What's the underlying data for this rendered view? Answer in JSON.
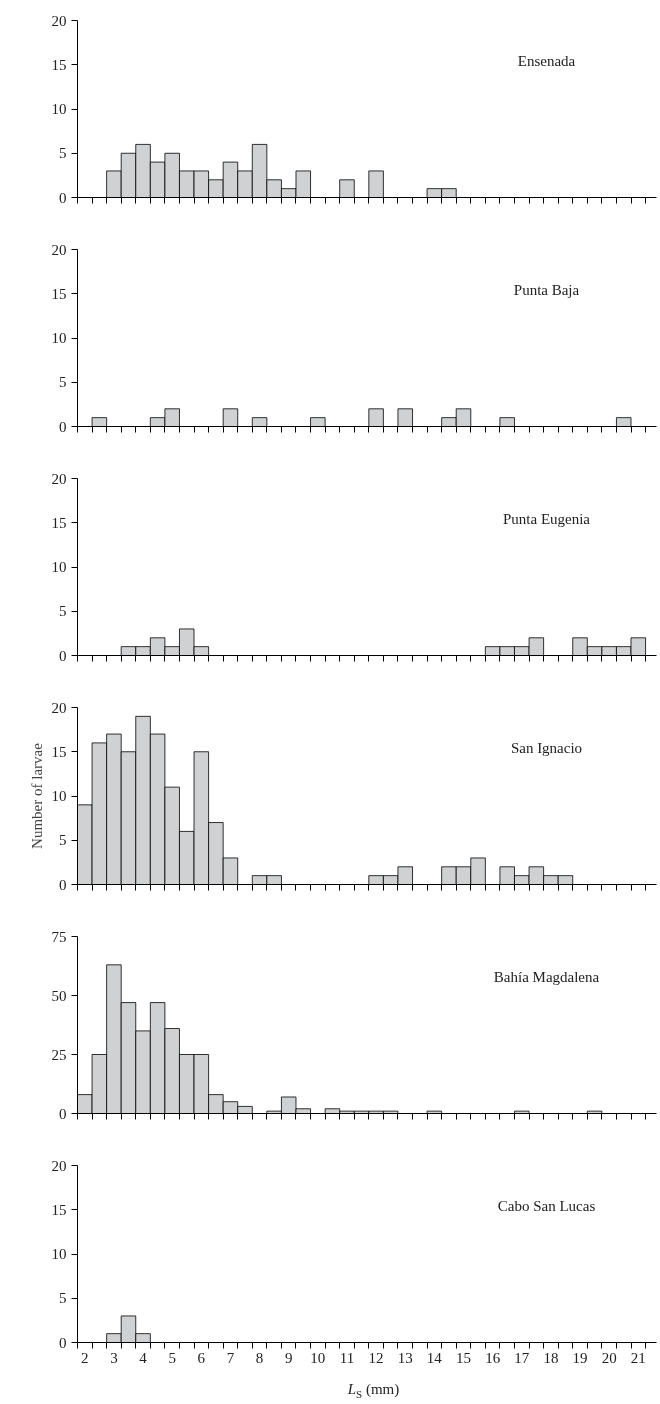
{
  "chart_data": [
    {
      "type": "bar",
      "title": "Ensenada",
      "color": "#d0d1d3",
      "tick_labels": "y",
      "ylim": [
        0,
        20
      ],
      "yticks": [
        0,
        5,
        10,
        15,
        20
      ],
      "categories": [
        "2",
        null,
        "3",
        null,
        "4",
        null,
        "5",
        null,
        "6",
        null,
        "7",
        null,
        "8",
        null,
        "9",
        null,
        "10",
        null,
        "11",
        null,
        "12",
        null,
        "13",
        null,
        "14",
        null,
        "15",
        null,
        "16",
        null,
        "17",
        null,
        "18",
        null,
        "19",
        null,
        "20",
        null,
        "21"
      ],
      "values": [
        0,
        0,
        3,
        5,
        6,
        4,
        5,
        3,
        3,
        2,
        4,
        3,
        6,
        2,
        1,
        3,
        0,
        0,
        2,
        0,
        3,
        0,
        0,
        0,
        1,
        1,
        0,
        0,
        0,
        0,
        0,
        0,
        0,
        0,
        0,
        0,
        0,
        0,
        0
      ]
    },
    {
      "type": "bar",
      "title": "Punta Baja",
      "color": "#d0d1d3",
      "tick_labels": "y",
      "ylim": [
        0,
        20
      ],
      "yticks": [
        0,
        5,
        10,
        15,
        20
      ],
      "categories": [
        "2",
        null,
        "3",
        null,
        "4",
        null,
        "5",
        null,
        "6",
        null,
        "7",
        null,
        "8",
        null,
        "9",
        null,
        "10",
        null,
        "11",
        null,
        "12",
        null,
        "13",
        null,
        "14",
        null,
        "15",
        null,
        "16",
        null,
        "17",
        null,
        "18",
        null,
        "19",
        null,
        "20",
        null,
        "21"
      ],
      "values": [
        0,
        1,
        0,
        0,
        0,
        1,
        2,
        0,
        0,
        0,
        2,
        0,
        1,
        0,
        0,
        0,
        1,
        0,
        0,
        0,
        2,
        0,
        2,
        0,
        0,
        1,
        2,
        0,
        0,
        1,
        0,
        0,
        0,
        0,
        0,
        0,
        0,
        1,
        0
      ]
    },
    {
      "type": "bar",
      "title": "Punta Eugenia",
      "color": "#d0d1d3",
      "tick_labels": "y",
      "ylim": [
        0,
        20
      ],
      "yticks": [
        0,
        5,
        10,
        15,
        20
      ],
      "categories": [
        "2",
        null,
        "3",
        null,
        "4",
        null,
        "5",
        null,
        "6",
        null,
        "7",
        null,
        "8",
        null,
        "9",
        null,
        "10",
        null,
        "11",
        null,
        "12",
        null,
        "13",
        null,
        "14",
        null,
        "15",
        null,
        "16",
        null,
        "17",
        null,
        "18",
        null,
        "19",
        null,
        "20",
        null,
        "21"
      ],
      "values": [
        0,
        0,
        0,
        1,
        1,
        2,
        1,
        3,
        1,
        0,
        0,
        0,
        0,
        0,
        0,
        0,
        0,
        0,
        0,
        0,
        0,
        0,
        0,
        0,
        0,
        0,
        0,
        0,
        1,
        1,
        1,
        2,
        0,
        0,
        2,
        1,
        1,
        1,
        2
      ]
    },
    {
      "type": "bar",
      "title": "San Ignacio",
      "ylabel": "Number of larvae",
      "color": "#d0d1d3",
      "tick_labels": "y",
      "ylim": [
        0,
        20
      ],
      "yticks": [
        0,
        5,
        10,
        15,
        20
      ],
      "categories": [
        "2",
        null,
        "3",
        null,
        "4",
        null,
        "5",
        null,
        "6",
        null,
        "7",
        null,
        "8",
        null,
        "9",
        null,
        "10",
        null,
        "11",
        null,
        "12",
        null,
        "13",
        null,
        "14",
        null,
        "15",
        null,
        "16",
        null,
        "17",
        null,
        "18",
        null,
        "19",
        null,
        "20",
        null,
        "21"
      ],
      "values": [
        9,
        16,
        17,
        15,
        19,
        17,
        11,
        6,
        15,
        7,
        3,
        0,
        1,
        1,
        0,
        0,
        0,
        0,
        0,
        0,
        1,
        1,
        2,
        0,
        0,
        2,
        2,
        3,
        0,
        2,
        1,
        2,
        1,
        1,
        0,
        0,
        0,
        0,
        0
      ]
    },
    {
      "type": "bar",
      "title": "Bahía Magdalena",
      "color": "#d0d1d3",
      "tick_labels": "y",
      "ylim": [
        0,
        75
      ],
      "yticks": [
        0,
        25,
        50,
        75
      ],
      "categories": [
        "2",
        null,
        "3",
        null,
        "4",
        null,
        "5",
        null,
        "6",
        null,
        "7",
        null,
        "8",
        null,
        "9",
        null,
        "10",
        null,
        "11",
        null,
        "12",
        null,
        "13",
        null,
        "14",
        null,
        "15",
        null,
        "16",
        null,
        "17",
        null,
        "18",
        null,
        "19",
        null,
        "20",
        null,
        "21"
      ],
      "values": [
        8,
        25,
        63,
        47,
        35,
        47,
        36,
        25,
        25,
        8,
        5,
        3,
        0,
        1,
        7,
        2,
        0,
        2,
        1,
        1,
        1,
        1,
        0,
        0,
        1,
        0,
        0,
        0,
        0,
        0,
        1,
        0,
        0,
        0,
        0,
        1,
        0,
        0,
        0
      ]
    },
    {
      "type": "bar",
      "title": "Cabo San Lucas",
      "xlabel": "L$_{S}$ (mm)",
      "color": "#d0d1d3",
      "ylim": [
        0,
        20
      ],
      "yticks": [
        0,
        5,
        10,
        15,
        20
      ],
      "categories": [
        "2",
        null,
        "3",
        null,
        "4",
        null,
        "5",
        null,
        "6",
        null,
        "7",
        null,
        "8",
        null,
        "9",
        null,
        "10",
        null,
        "11",
        null,
        "12",
        null,
        "13",
        null,
        "14",
        null,
        "15",
        null,
        "16",
        null,
        "17",
        null,
        "18",
        null,
        "19",
        null,
        "20",
        null,
        "21"
      ],
      "values": [
        0,
        0,
        1,
        3,
        1,
        0,
        0,
        0,
        0,
        0,
        0,
        0,
        0,
        0,
        0,
        0,
        0,
        0,
        0,
        0,
        0,
        0,
        0,
        0,
        0,
        0,
        0,
        0,
        0,
        0,
        0,
        0,
        0,
        0,
        0,
        0,
        0,
        0,
        0
      ]
    }
  ]
}
